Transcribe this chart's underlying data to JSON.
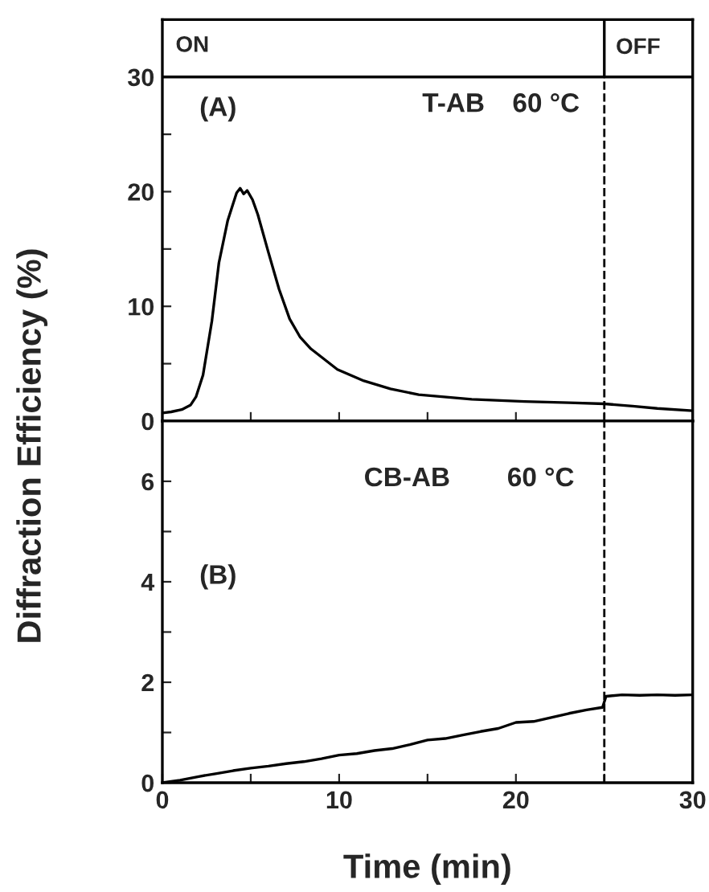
{
  "chart_data": [
    {
      "type": "line",
      "ylabel": "Diffraction Efficiency (%)",
      "annotations": [
        "ON",
        "OFF",
        "(A)",
        "T-AB",
        "60 °C"
      ],
      "x": [
        0,
        0.5,
        1.1,
        1.6,
        1.9,
        2.3,
        2.8,
        3.2,
        3.7,
        4.2,
        4.4,
        4.6,
        4.8,
        5.1,
        5.4,
        6.0,
        6.6,
        7.2,
        7.8,
        8.4,
        9.9,
        11.4,
        12.9,
        14.5,
        17.5,
        20.5,
        23,
        25,
        26.6,
        28,
        30
      ],
      "series": [
        {
          "color": "#000000",
          "values": [
            0.7,
            0.8,
            1.0,
            1.4,
            2.1,
            4.0,
            8.7,
            13.8,
            17.5,
            19.9,
            20.3,
            19.8,
            20.1,
            19.3,
            18.0,
            14.7,
            11.5,
            8.9,
            7.3,
            6.3,
            4.5,
            3.5,
            2.8,
            2.3,
            1.9,
            1.7,
            1.6,
            1.5,
            1.3,
            1.1,
            0.9
          ]
        }
      ],
      "xlim": [
        0,
        30
      ],
      "xticks": [
        0,
        {
          "value": 5,
          "label": null
        },
        10,
        {
          "value": 15,
          "label": null
        },
        20,
        {
          "value": 25,
          "label": null
        },
        30
      ],
      "ylim": [
        0,
        35
      ],
      "yticks": [
        0,
        {
          "value": 5,
          "label": null
        },
        10,
        {
          "value": 15,
          "label": null
        },
        20,
        {
          "value": 25,
          "label": null
        },
        30
      ],
      "tick_labels": "y",
      "grid": false,
      "legend": false,
      "ref_lines": [
        {
          "axis": "x",
          "value": 25,
          "label": null,
          "color": "#000000",
          "line_style": "dashed"
        },
        {
          "axis": "y",
          "value": 30,
          "label": null,
          "color": "#000000",
          "line_style": "solid"
        }
      ]
    },
    {
      "type": "line",
      "xlabel": "Time (min)",
      "annotations": [
        "(B)",
        "CB-AB",
        "60 °C"
      ],
      "x": [
        0,
        1,
        2,
        3,
        4,
        5,
        6,
        7,
        8,
        9,
        10,
        11,
        12,
        13,
        14,
        15,
        16,
        17,
        18,
        19,
        20,
        21,
        22,
        23,
        24,
        24.9,
        25.1,
        26,
        27,
        28,
        29,
        30
      ],
      "series": [
        {
          "color": "#000000",
          "values": [
            0,
            0.05,
            0.12,
            0.18,
            0.24,
            0.29,
            0.33,
            0.38,
            0.42,
            0.48,
            0.55,
            0.58,
            0.64,
            0.68,
            0.76,
            0.85,
            0.88,
            0.95,
            1.02,
            1.08,
            1.2,
            1.22,
            1.3,
            1.38,
            1.45,
            1.5,
            1.72,
            1.75,
            1.74,
            1.75,
            1.74,
            1.75
          ]
        }
      ],
      "xlim": [
        0,
        30
      ],
      "xticks": [
        0,
        {
          "value": 5,
          "label": null
        },
        10,
        {
          "value": 15,
          "label": null
        },
        20,
        {
          "value": 25,
          "label": null
        },
        30
      ],
      "ylim": [
        0,
        7.2
      ],
      "yticks": [
        0,
        {
          "value": 1,
          "label": null
        },
        2,
        {
          "value": 3,
          "label": null
        },
        4,
        {
          "value": 5,
          "label": null
        },
        6
      ],
      "grid": false,
      "legend": false,
      "ref_lines": [
        {
          "axis": "x",
          "value": 25,
          "label": null,
          "color": "#000000",
          "line_style": "dashed"
        }
      ]
    }
  ]
}
